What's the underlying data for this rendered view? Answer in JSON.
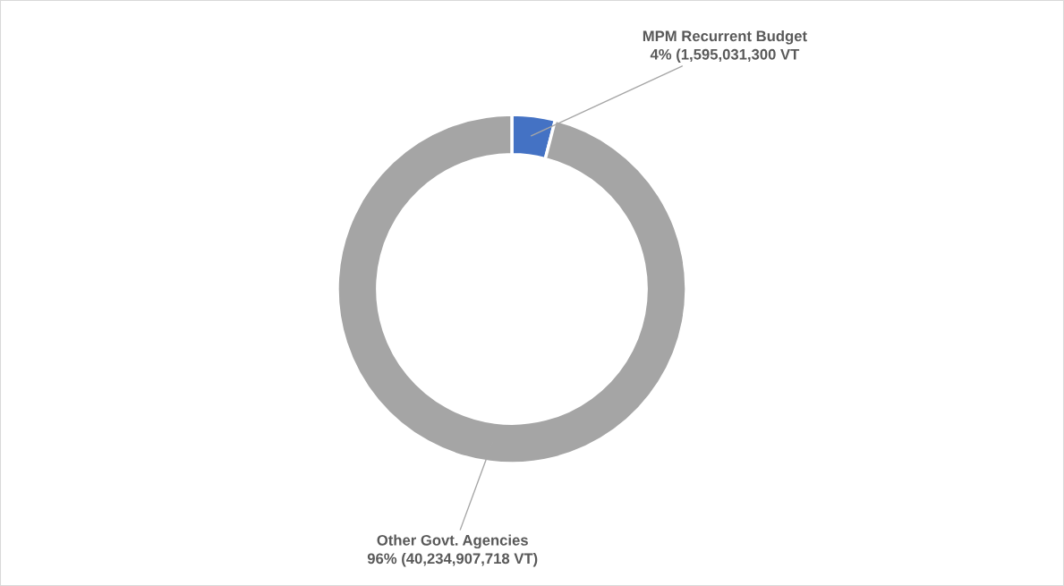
{
  "chart_data": {
    "type": "donut",
    "categories": [
      "MPM Recurrent Budget",
      "Other Govt. Agencies"
    ],
    "values": [
      4,
      96
    ],
    "colors": [
      "#4472c4",
      "#a5a5a5"
    ],
    "value_labels": [
      "4% (1,595,031,300 VT",
      "96% (40,234,907,718 VT)"
    ],
    "legend": false
  }
}
